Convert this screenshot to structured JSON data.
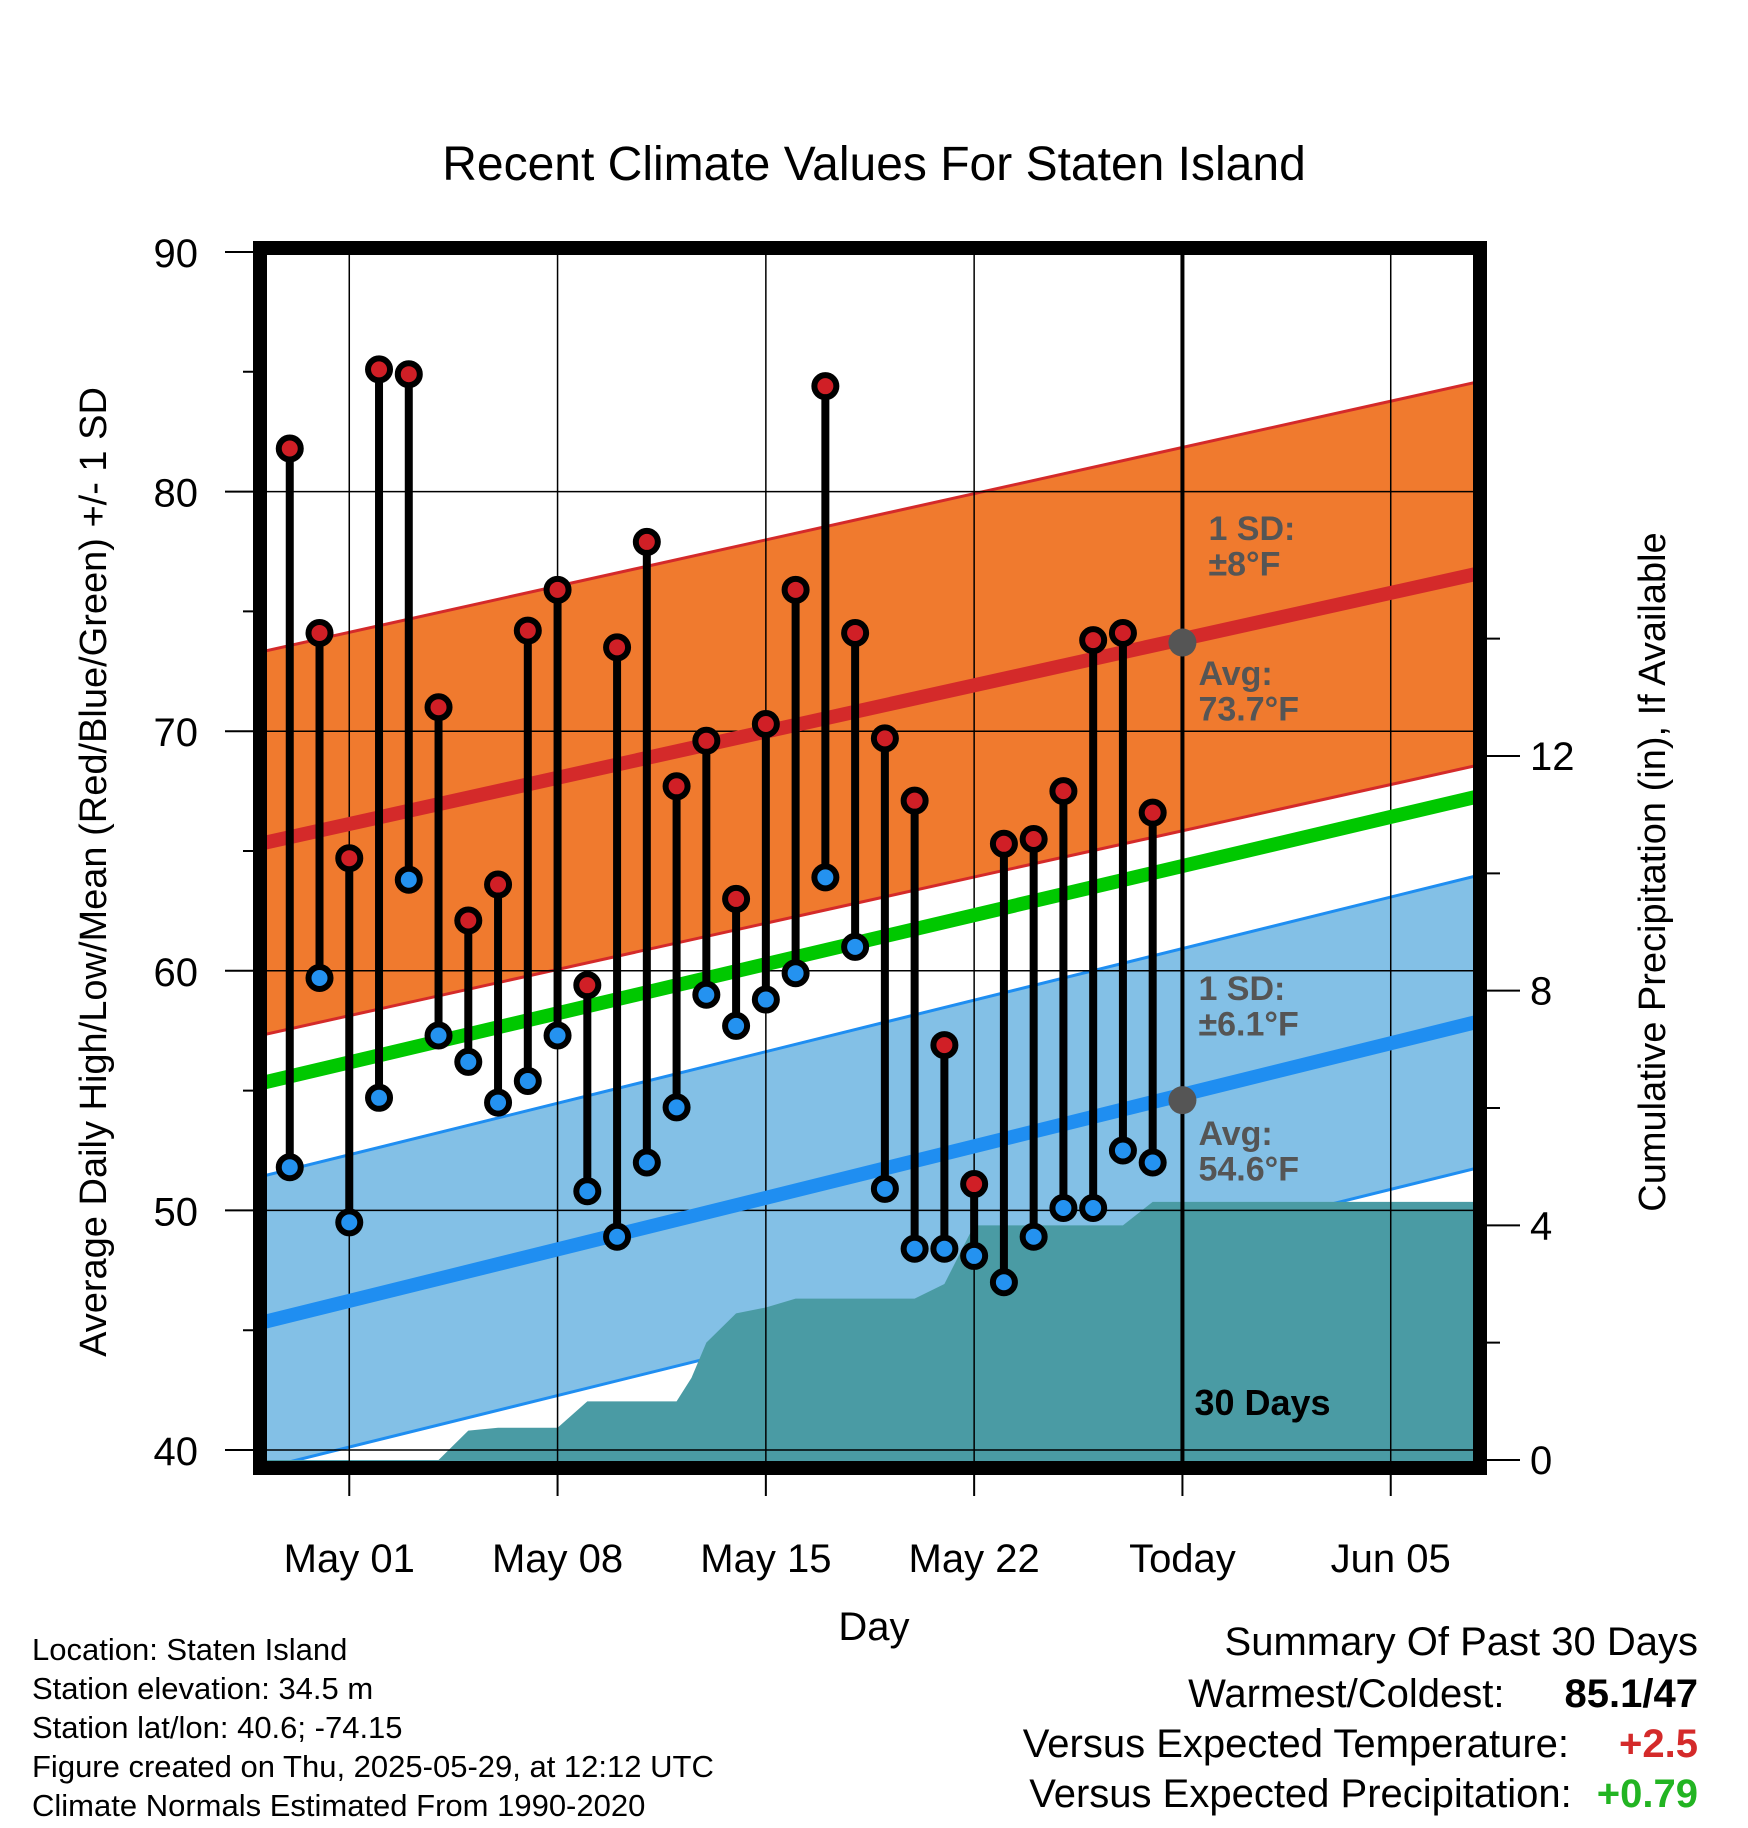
{
  "chart_data": {
    "type": "line",
    "title": "Recent Climate Values For Staten Island",
    "xlabel": "Day",
    "ylabel_left": "Average Daily High/Low/Mean (Red/Blue/Green) +/- 1 SD",
    "ylabel_right": "Cumulative Precipitation (in), If Available",
    "ylim_left": [
      40,
      90
    ],
    "yticks_left": [
      40,
      50,
      60,
      70,
      80,
      90
    ],
    "ylim_right": [
      0,
      24
    ],
    "yticks_right": [
      0,
      4,
      8,
      12
    ],
    "xlim_days": [
      -3,
      38
    ],
    "x_ticks": [
      {
        "day": 0,
        "label": "May 01"
      },
      {
        "day": 7,
        "label": "May 08"
      },
      {
        "day": 14,
        "label": "May 15"
      },
      {
        "day": 21,
        "label": "May 22"
      },
      {
        "day": 28,
        "label": "Today"
      },
      {
        "day": 35,
        "label": "Jun 05"
      }
    ],
    "today_day": 28,
    "today_label": "30 Days",
    "days": [
      -2,
      -1,
      0,
      1,
      2,
      3,
      4,
      5,
      6,
      7,
      8,
      9,
      10,
      11,
      12,
      13,
      14,
      15,
      16,
      17,
      18,
      19,
      20,
      21,
      22,
      23,
      24,
      25,
      26,
      27
    ],
    "high": [
      81.8,
      74.1,
      64.7,
      85.1,
      84.9,
      71.0,
      62.1,
      63.6,
      74.2,
      75.9,
      59.4,
      73.5,
      77.9,
      67.7,
      69.6,
      63.0,
      70.3,
      75.9,
      84.4,
      74.1,
      69.7,
      67.1,
      56.9,
      51.1,
      65.3,
      65.5,
      67.5,
      73.8,
      74.1,
      66.6
    ],
    "low": [
      51.8,
      59.7,
      49.5,
      54.7,
      63.8,
      57.3,
      56.2,
      54.5,
      55.4,
      57.3,
      50.8,
      48.9,
      52.0,
      54.3,
      59.0,
      57.7,
      58.8,
      59.9,
      63.9,
      61.0,
      50.9,
      48.4,
      48.4,
      48.1,
      47.0,
      48.9,
      50.1,
      50.1,
      52.5,
      52.0
    ],
    "normal_high": {
      "start": 65.3,
      "end": 76.6,
      "sd": 8.0
    },
    "normal_low": {
      "start": 45.3,
      "end": 57.9,
      "sd": 6.1
    },
    "normal_mean": {
      "start": 55.3,
      "end": 67.3
    },
    "precip_cumulative": [
      [
        -3,
        0
      ],
      [
        3,
        0
      ],
      [
        4,
        0.5
      ],
      [
        5,
        0.55
      ],
      [
        7,
        0.55
      ],
      [
        8,
        1.0
      ],
      [
        10,
        1.0
      ],
      [
        11,
        1.0
      ],
      [
        11.5,
        1.4
      ],
      [
        12,
        2.0
      ],
      [
        13,
        2.5
      ],
      [
        14,
        2.6
      ],
      [
        15,
        2.75
      ],
      [
        19,
        2.75
      ],
      [
        20,
        3.0
      ],
      [
        21,
        4.0
      ],
      [
        23,
        4.0
      ],
      [
        26,
        4.0
      ],
      [
        27,
        4.4
      ],
      [
        38,
        4.4
      ]
    ],
    "today_high_avg_label": "Avg:\n73.7°F",
    "today_low_avg_label": "Avg:\n54.6°F",
    "today_high_avg": 73.7,
    "today_low_avg": 54.6,
    "high_sd_label": "1 SD:\n±8°F",
    "low_sd_label": "1 SD:\n±6.1°F",
    "colors": {
      "high_band": "#f07a2e",
      "high_line": "#d42a2a",
      "low_band": "#83c0e6",
      "low_line": "#1f8ef1",
      "mean_line": "#00c800",
      "precip": "#4a9ba4",
      "high_marker": "#d01f26",
      "low_marker": "#2492f0",
      "annotation": "#555555"
    },
    "grid": true
  },
  "info": {
    "location": "Location: Staten Island",
    "elevation": "Station elevation: 34.5 m",
    "latlon": "Station lat/lon: 40.6; -74.15",
    "created": "Figure created on Thu, 2025-05-29, at 12:12 UTC",
    "normals": "Climate Normals Estimated From 1990-2020"
  },
  "summary": {
    "title": "Summary Of Past 30 Days",
    "warm_cold_label": "Warmest/Coldest:",
    "warm_cold_value": "85.1/47",
    "temp_label": "Versus Expected Temperature:",
    "temp_value": "+2.5",
    "temp_color": "#d42a2a",
    "precip_label": "Versus Expected Precipitation:",
    "precip_value": "+0.79",
    "precip_color": "#22b422"
  }
}
